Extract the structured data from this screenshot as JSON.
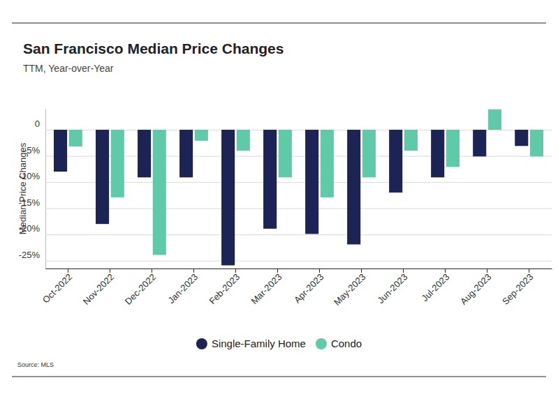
{
  "chart_data": {
    "type": "bar",
    "title": "San Francisco Median Price Changes",
    "subtitle": "TTM, Year-over-Year",
    "y_label": "Median Price Changes",
    "source": "Source: MLS",
    "categories": [
      "Oct-2022",
      "Nov-2022",
      "Dec-2022",
      "Jan-2023",
      "Feb-2023",
      "Mar-2023",
      "Apr-2023",
      "May-2023",
      "Jun-2023",
      "Jul-2023",
      "Aug-2023",
      "Sep-2023"
    ],
    "series": [
      {
        "name": "Single-Family Home",
        "color": "#1c2456",
        "values": [
          -8.0,
          -18.0,
          -9.1,
          -9.1,
          -25.9,
          -18.9,
          -19.9,
          -21.9,
          -12.0,
          -9.1,
          -5.1,
          -3.1
        ]
      },
      {
        "name": "Condo",
        "color": "#5ecaa8",
        "values": [
          -3.2,
          -12.9,
          -23.9,
          -2.1,
          -4.0,
          -9.1,
          -12.9,
          -9.1,
          -4.0,
          -7.1,
          3.9,
          -5.1
        ]
      }
    ],
    "ylim": [
      -26.5,
      4
    ],
    "yticks": [
      0,
      {
        "value": -5,
        "label": "-5%"
      },
      {
        "value": -10,
        "label": "-10%"
      },
      {
        "value": -15,
        "label": "-15%"
      },
      {
        "value": -20,
        "label": "-20%"
      },
      {
        "value": -25,
        "label": "-25%"
      }
    ],
    "grid": true,
    "legend": "bottom"
  }
}
